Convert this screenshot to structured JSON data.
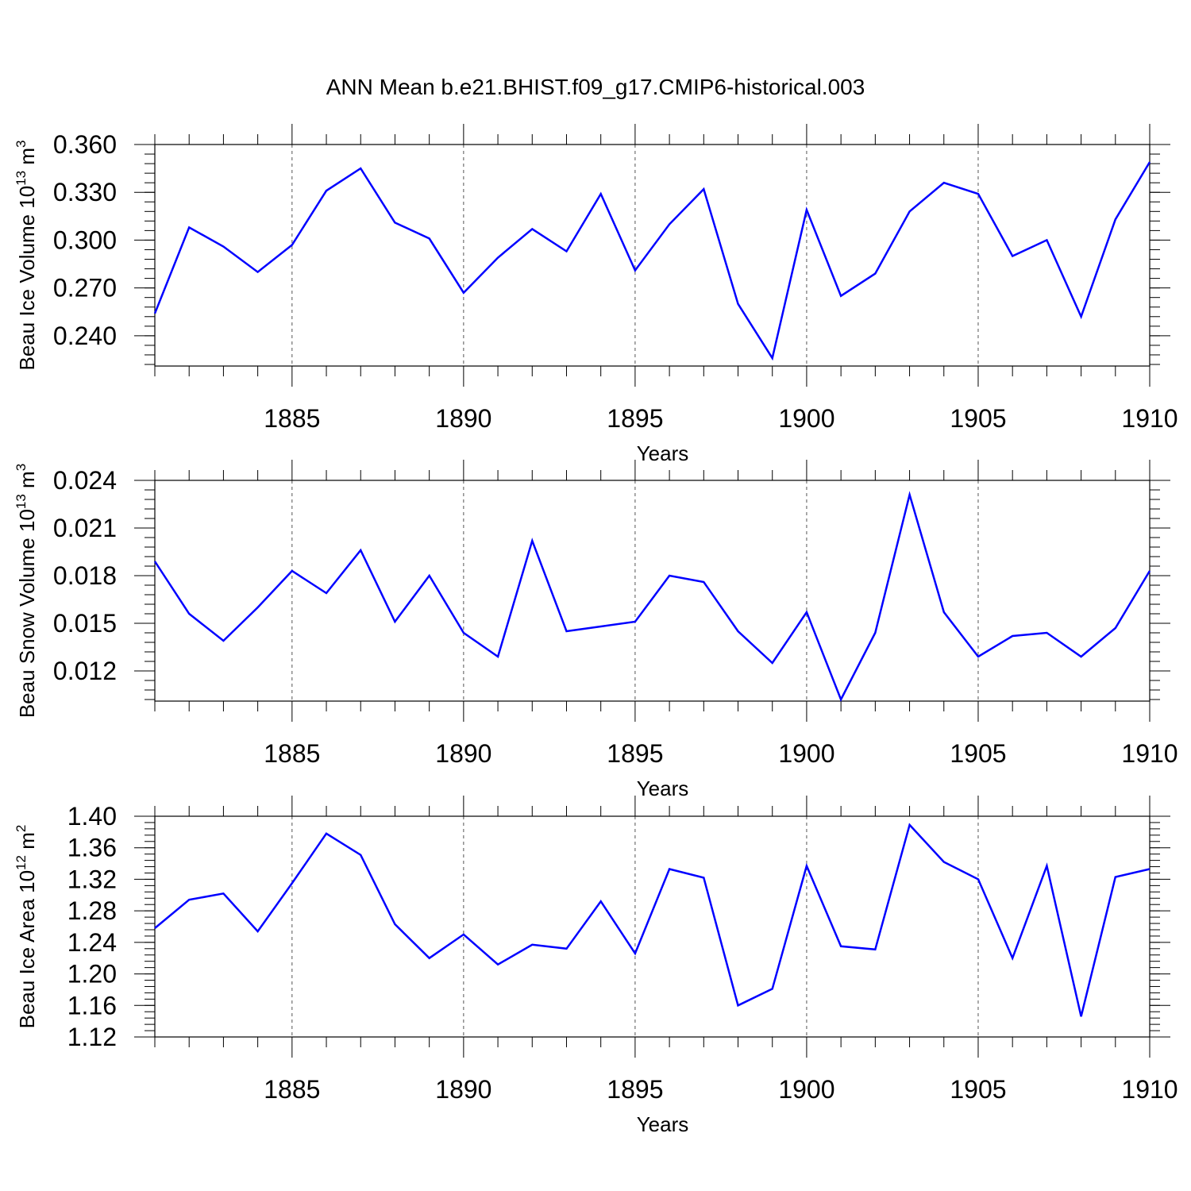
{
  "title": "ANN Mean b.e21.BHIST.f09_g17.CMIP6-historical.003",
  "colors": {
    "line": "#0000ff",
    "axis": "#000000",
    "grid": "#555555"
  },
  "chart_data": [
    {
      "type": "line",
      "ylabel_base": "Beau Ice Volume 10",
      "ylabel_exp": "13",
      "ylabel_unit": " m",
      "ylabel_unit_exp": "3",
      "xlabel": "Years",
      "xlim": [
        1881,
        1910
      ],
      "ylim": [
        0.221,
        0.36
      ],
      "yticks": [
        0.24,
        0.27,
        0.3,
        0.33,
        0.36
      ],
      "ytick_labels": [
        "0.240",
        "0.270",
        "0.300",
        "0.330",
        "0.360"
      ],
      "xticks": [
        1885,
        1890,
        1895,
        1900,
        1905,
        1910
      ],
      "grid_x": [
        1885,
        1890,
        1895,
        1900,
        1905
      ],
      "x": [
        1881,
        1882,
        1883,
        1884,
        1885,
        1886,
        1887,
        1888,
        1889,
        1890,
        1891,
        1892,
        1893,
        1894,
        1895,
        1896,
        1897,
        1898,
        1899,
        1900,
        1901,
        1902,
        1903,
        1904,
        1905,
        1906,
        1907,
        1908,
        1909,
        1910
      ],
      "series": [
        {
          "values": [
            0.254,
            0.308,
            0.296,
            0.28,
            0.297,
            0.331,
            0.345,
            0.311,
            0.301,
            0.267,
            0.289,
            0.307,
            0.293,
            0.329,
            0.281,
            0.31,
            0.332,
            0.26,
            0.226,
            0.319,
            0.265,
            0.279,
            0.318,
            0.336,
            0.329,
            0.29,
            0.3,
            0.252,
            0.313,
            0.349
          ]
        }
      ]
    },
    {
      "type": "line",
      "ylabel_base": "Beau Snow Volume 10",
      "ylabel_exp": "13",
      "ylabel_unit": " m",
      "ylabel_unit_exp": "3",
      "xlabel": "Years",
      "xlim": [
        1881,
        1910
      ],
      "ylim": [
        0.0101,
        0.024
      ],
      "yticks": [
        0.012,
        0.015,
        0.018,
        0.021,
        0.024
      ],
      "ytick_labels": [
        "0.012",
        "0.015",
        "0.018",
        "0.021",
        "0.024"
      ],
      "xticks": [
        1885,
        1890,
        1895,
        1900,
        1905,
        1910
      ],
      "grid_x": [
        1885,
        1890,
        1895,
        1900,
        1905
      ],
      "x": [
        1881,
        1882,
        1883,
        1884,
        1885,
        1886,
        1887,
        1888,
        1889,
        1890,
        1891,
        1892,
        1893,
        1894,
        1895,
        1896,
        1897,
        1898,
        1899,
        1900,
        1901,
        1902,
        1903,
        1904,
        1905,
        1906,
        1907,
        1908,
        1909,
        1910
      ],
      "series": [
        {
          "values": [
            0.0189,
            0.0156,
            0.0139,
            0.016,
            0.0183,
            0.0169,
            0.0196,
            0.0151,
            0.018,
            0.0144,
            0.0129,
            0.0202,
            0.0145,
            0.0148,
            0.0151,
            0.018,
            0.0176,
            0.0145,
            0.0125,
            0.0157,
            0.0102,
            0.0144,
            0.0231,
            0.0157,
            0.0129,
            0.0142,
            0.0144,
            0.0129,
            0.0147,
            0.0183
          ]
        }
      ]
    },
    {
      "type": "line",
      "ylabel_base": "Beau Ice Area 10",
      "ylabel_exp": "12",
      "ylabel_unit": " m",
      "ylabel_unit_exp": "2",
      "xlabel": "Years",
      "xlim": [
        1881,
        1910
      ],
      "ylim": [
        1.12,
        1.4
      ],
      "yticks": [
        1.12,
        1.16,
        1.2,
        1.24,
        1.28,
        1.32,
        1.36,
        1.4
      ],
      "ytick_labels": [
        "1.12",
        "1.16",
        "1.20",
        "1.24",
        "1.28",
        "1.32",
        "1.36",
        "1.40"
      ],
      "xticks": [
        1885,
        1890,
        1895,
        1900,
        1905,
        1910
      ],
      "grid_x": [
        1885,
        1890,
        1895,
        1900,
        1905
      ],
      "x": [
        1881,
        1882,
        1883,
        1884,
        1885,
        1886,
        1887,
        1888,
        1889,
        1890,
        1891,
        1892,
        1893,
        1894,
        1895,
        1896,
        1897,
        1898,
        1899,
        1900,
        1901,
        1902,
        1903,
        1904,
        1905,
        1906,
        1907,
        1908,
        1909,
        1910
      ],
      "series": [
        {
          "values": [
            1.258,
            1.294,
            1.302,
            1.254,
            1.315,
            1.378,
            1.351,
            1.263,
            1.22,
            1.25,
            1.212,
            1.237,
            1.232,
            1.292,
            1.226,
            1.333,
            1.322,
            1.16,
            1.181,
            1.337,
            1.235,
            1.231,
            1.389,
            1.342,
            1.32,
            1.22,
            1.337,
            1.146,
            1.323,
            1.333
          ]
        }
      ]
    }
  ]
}
